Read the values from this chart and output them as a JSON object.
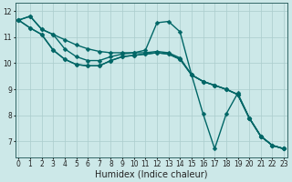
{
  "bg_color": "#cce8e8",
  "grid_color": "#aacccc",
  "line_color": "#006666",
  "marker_style": "D",
  "marker_size": 2.5,
  "line_width": 1.0,
  "xlabel": "Humidex (Indice chaleur)",
  "xlabel_fontsize": 7,
  "tick_fontsize": 5.5,
  "ylim": [
    6.4,
    12.3
  ],
  "xlim": [
    -0.3,
    23.3
  ],
  "yticks": [
    7,
    8,
    9,
    10,
    11,
    12
  ],
  "xticks": [
    0,
    1,
    2,
    3,
    4,
    5,
    6,
    7,
    8,
    9,
    10,
    11,
    12,
    13,
    14,
    15,
    16,
    17,
    18,
    19,
    20,
    21,
    22,
    23
  ],
  "series": [
    {
      "x": [
        0,
        1,
        2,
        3,
        4,
        5,
        6,
        7,
        8,
        9,
        10,
        11,
        12,
        13,
        14,
        15,
        16,
        17,
        18,
        19,
        20,
        21,
        22,
        23
      ],
      "y": [
        11.65,
        11.8,
        11.3,
        11.1,
        10.9,
        10.7,
        10.55,
        10.45,
        10.4,
        10.4,
        10.4,
        10.5,
        11.55,
        11.6,
        11.2,
        9.55,
        9.3,
        9.15,
        9.0,
        8.8,
        7.9,
        7.2,
        6.85,
        6.72
      ]
    },
    {
      "x": [
        0,
        1,
        2,
        3,
        4,
        5,
        6,
        7,
        8,
        9,
        10,
        11,
        12,
        13,
        14,
        15,
        16,
        17,
        18,
        19,
        20,
        21,
        22,
        23
      ],
      "y": [
        11.65,
        11.8,
        11.3,
        11.1,
        10.55,
        10.25,
        10.1,
        10.1,
        10.25,
        10.35,
        10.4,
        10.4,
        10.45,
        10.4,
        10.2,
        9.55,
        9.3,
        9.15,
        9.0,
        8.8,
        7.9,
        7.2,
        6.85,
        6.72
      ]
    },
    {
      "x": [
        0,
        1,
        2,
        3,
        4,
        5,
        6,
        7,
        8,
        9,
        10,
        11,
        12,
        13,
        14,
        15,
        16,
        17,
        18,
        19,
        20,
        21,
        22,
        23
      ],
      "y": [
        11.65,
        11.35,
        11.1,
        10.5,
        10.15,
        9.95,
        9.9,
        9.9,
        10.1,
        10.25,
        10.3,
        10.35,
        10.4,
        10.35,
        10.15,
        9.55,
        9.3,
        9.15,
        9.0,
        8.8,
        7.9,
        7.2,
        6.85,
        6.72
      ]
    },
    {
      "x": [
        0,
        1,
        2,
        3,
        4,
        5,
        6,
        7,
        8,
        9,
        10,
        11,
        12,
        13,
        14,
        15,
        16,
        17,
        18,
        19,
        20,
        21,
        22,
        23
      ],
      "y": [
        11.65,
        11.35,
        11.1,
        10.5,
        10.15,
        9.95,
        9.9,
        9.9,
        10.1,
        10.25,
        10.3,
        10.35,
        10.4,
        10.35,
        10.15,
        9.55,
        8.05,
        6.72,
        8.05,
        8.85,
        7.9,
        7.2,
        6.85,
        6.72
      ]
    }
  ]
}
